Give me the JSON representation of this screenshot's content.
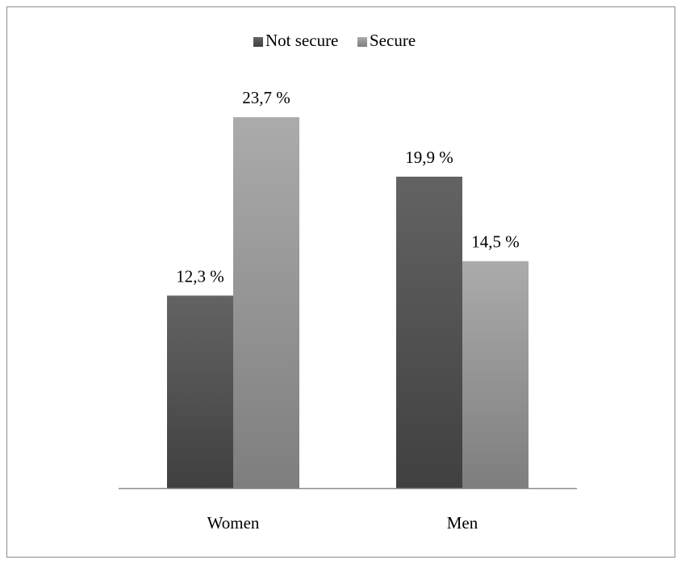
{
  "chart_data": {
    "type": "bar",
    "categories": [
      "Women",
      "Men"
    ],
    "series": [
      {
        "name": "Not secure",
        "values": [
          12.3,
          19.9
        ],
        "labels": [
          "12,3 %",
          "19,9 %"
        ],
        "color_top": "#636363",
        "color_bottom": "#404040"
      },
      {
        "name": "Secure",
        "values": [
          23.7,
          14.5
        ],
        "labels": [
          "23,7 %",
          "14,5 %"
        ],
        "color_top": "#ababab",
        "color_bottom": "#7e7e7e"
      }
    ],
    "ylim": [
      0,
      25
    ],
    "grid": false,
    "legend_position": "top",
    "axis_color": "#8c8c8c"
  }
}
